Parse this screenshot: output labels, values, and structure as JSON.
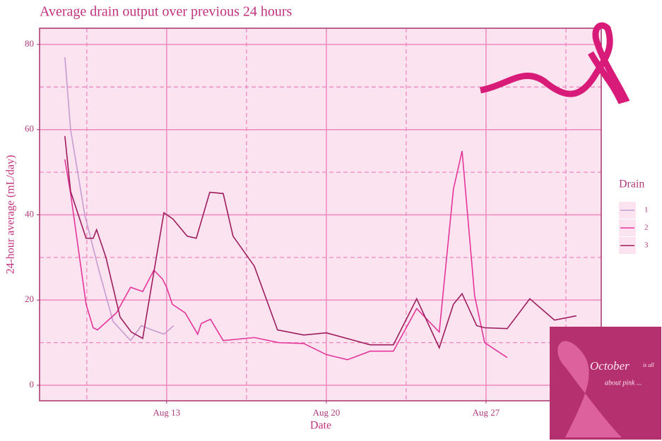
{
  "chart_data": {
    "type": "line",
    "title": "Average drain output over previous 24 hours",
    "xlabel": "Date",
    "ylabel": "24-hour average (mL/day)",
    "legend_title": "Drain",
    "legend": "right",
    "grid": true,
    "xlim": [
      7.43,
      32.05
    ],
    "xticks": [
      {
        "value": 13,
        "label": "Aug 13"
      },
      {
        "value": 20,
        "label": "Aug 20"
      },
      {
        "value": 27,
        "label": "Aug 27"
      }
    ],
    "xminor": [
      9.5,
      16.5,
      23.5,
      30.5
    ],
    "ylim": [
      -3.64,
      83.8
    ],
    "yticks": [
      0,
      20,
      40,
      60,
      80
    ],
    "yminor": [
      10,
      30,
      50,
      70
    ],
    "annotations": [
      "October",
      "is all",
      "about pink ..."
    ],
    "series": [
      {
        "name": "1",
        "color": "#c79ad0",
        "x": [
          8.54,
          8.79,
          9.41,
          10.03,
          10.65,
          11.42,
          11.89,
          12.35,
          12.88,
          13.31
        ],
        "values": [
          77,
          60,
          40,
          27,
          15,
          10.5,
          14,
          13,
          12,
          14
        ]
      },
      {
        "name": "2",
        "color": "#e4359a",
        "x": [
          8.54,
          8.79,
          9.47,
          9.78,
          9.97,
          10.8,
          11.42,
          11.95,
          12.44,
          12.81,
          13,
          13.25,
          13.81,
          14.36,
          14.52,
          14.92,
          15.48,
          16.84,
          17.92,
          19.01,
          20,
          20.93,
          21.92,
          22.94,
          23.96,
          24.95,
          25.57,
          25.95,
          26.5,
          26.94,
          27.93
        ],
        "values": [
          53,
          45,
          19,
          13.5,
          13,
          17,
          23,
          22,
          27,
          25,
          23,
          19,
          17,
          12,
          14.5,
          15.5,
          10.5,
          11.2,
          10,
          9.8,
          7.2,
          6,
          8,
          8,
          18,
          12.5,
          46,
          55,
          21,
          10,
          6.5
        ]
      },
      {
        "name": "3",
        "color": "#9c1c5c",
        "x": [
          8.54,
          8.79,
          9.47,
          9.78,
          9.93,
          10.34,
          10.96,
          11.45,
          11.95,
          12.88,
          13.28,
          13.9,
          14.3,
          14.89,
          15.48,
          15.91,
          16.84,
          17.86,
          19.01,
          20,
          21.92,
          22.94,
          23.96,
          24.95,
          25.57,
          25.95,
          26.59,
          26.94,
          27.93,
          28.92,
          30.0,
          30.96
        ],
        "values": [
          58.5,
          45.5,
          34.5,
          34.5,
          36.5,
          30,
          16,
          12.5,
          11,
          40.5,
          39,
          35,
          34.5,
          45.3,
          45,
          35,
          28,
          13,
          11.8,
          12.3,
          9.5,
          9.5,
          20.3,
          8.8,
          19,
          21.5,
          14,
          13.5,
          13.3,
          20.3,
          15.3,
          16.3
        ]
      }
    ]
  }
}
